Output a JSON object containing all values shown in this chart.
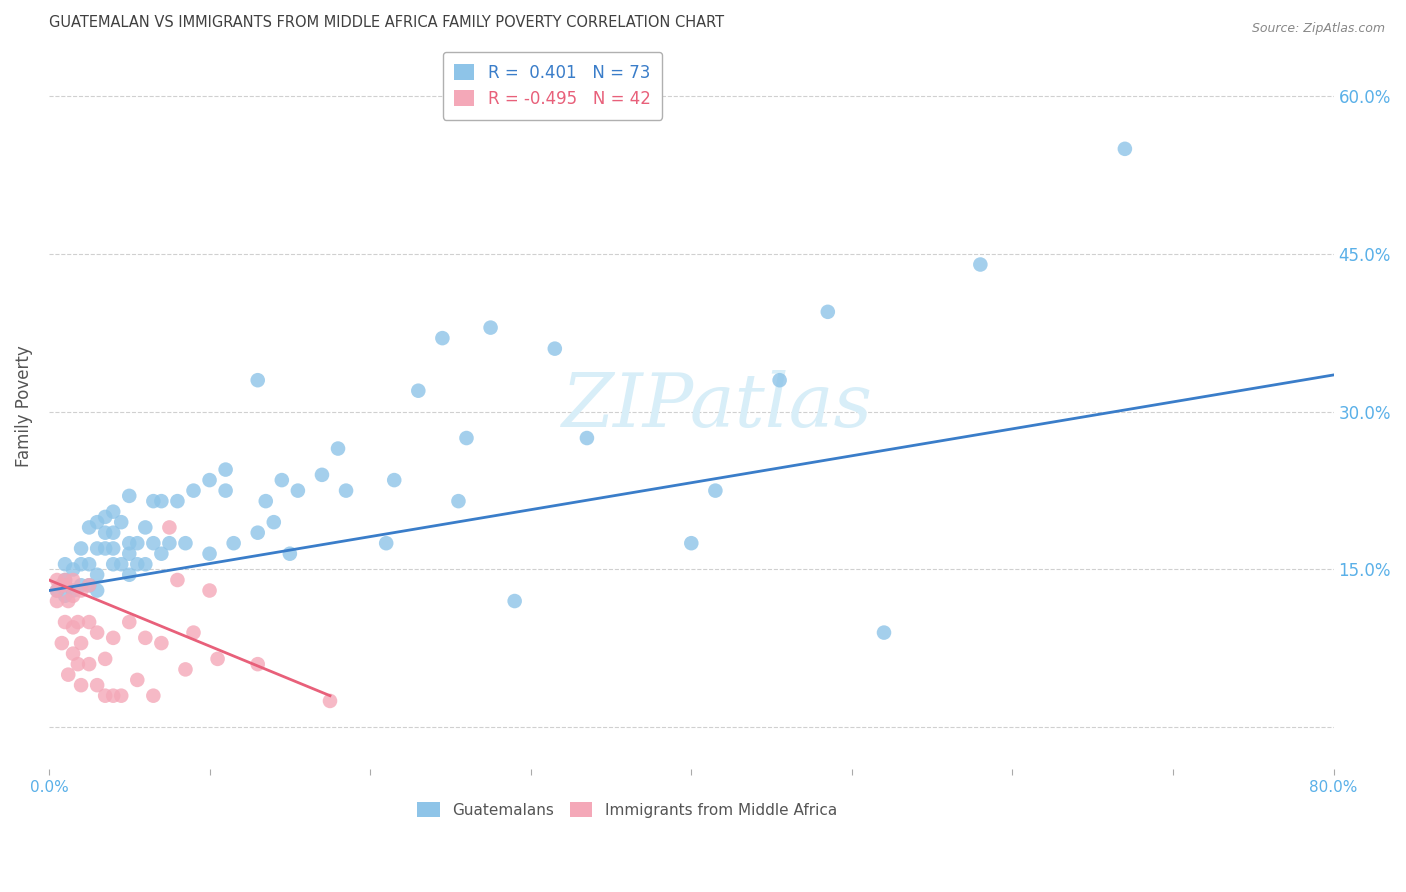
{
  "title": "GUATEMALAN VS IMMIGRANTS FROM MIDDLE AFRICA FAMILY POVERTY CORRELATION CHART",
  "source": "Source: ZipAtlas.com",
  "ylabel": "Family Poverty",
  "xlim": [
    0.0,
    0.8
  ],
  "ylim": [
    -0.04,
    0.65
  ],
  "yticks": [
    0.0,
    0.15,
    0.3,
    0.45,
    0.6
  ],
  "ytick_labels": [
    "",
    "15.0%",
    "30.0%",
    "45.0%",
    "60.0%"
  ],
  "xticks": [
    0.0,
    0.1,
    0.2,
    0.3,
    0.4,
    0.5,
    0.6,
    0.7,
    0.8
  ],
  "xtick_labels": [
    "0.0%",
    "",
    "",
    "",
    "",
    "",
    "",
    "",
    "80.0%"
  ],
  "blue_R": 0.401,
  "blue_N": 73,
  "pink_R": -0.495,
  "pink_N": 42,
  "blue_color": "#8ec4e8",
  "pink_color": "#f4a8b8",
  "blue_line_color": "#3a7dc9",
  "pink_line_color": "#e8607a",
  "grid_color": "#d0d0d0",
  "title_color": "#404040",
  "axis_label_color": "#555555",
  "right_tick_color": "#5ab0e8",
  "watermark_color": "#d8eef8",
  "blue_scatter_x": [
    0.005,
    0.01,
    0.01,
    0.01,
    0.015,
    0.015,
    0.02,
    0.02,
    0.02,
    0.025,
    0.025,
    0.025,
    0.03,
    0.03,
    0.03,
    0.03,
    0.035,
    0.035,
    0.035,
    0.04,
    0.04,
    0.04,
    0.04,
    0.045,
    0.045,
    0.05,
    0.05,
    0.05,
    0.05,
    0.055,
    0.055,
    0.06,
    0.06,
    0.065,
    0.065,
    0.07,
    0.07,
    0.075,
    0.08,
    0.085,
    0.09,
    0.1,
    0.1,
    0.11,
    0.11,
    0.115,
    0.13,
    0.13,
    0.135,
    0.14,
    0.145,
    0.15,
    0.155,
    0.17,
    0.18,
    0.185,
    0.21,
    0.215,
    0.23,
    0.245,
    0.255,
    0.26,
    0.275,
    0.29,
    0.315,
    0.335,
    0.4,
    0.415,
    0.455,
    0.485,
    0.52,
    0.58,
    0.67
  ],
  "blue_scatter_y": [
    0.13,
    0.125,
    0.14,
    0.155,
    0.13,
    0.15,
    0.135,
    0.155,
    0.17,
    0.135,
    0.155,
    0.19,
    0.13,
    0.145,
    0.17,
    0.195,
    0.17,
    0.185,
    0.2,
    0.155,
    0.17,
    0.185,
    0.205,
    0.155,
    0.195,
    0.145,
    0.165,
    0.175,
    0.22,
    0.155,
    0.175,
    0.155,
    0.19,
    0.175,
    0.215,
    0.165,
    0.215,
    0.175,
    0.215,
    0.175,
    0.225,
    0.165,
    0.235,
    0.225,
    0.245,
    0.175,
    0.185,
    0.33,
    0.215,
    0.195,
    0.235,
    0.165,
    0.225,
    0.24,
    0.265,
    0.225,
    0.175,
    0.235,
    0.32,
    0.37,
    0.215,
    0.275,
    0.38,
    0.12,
    0.36,
    0.275,
    0.175,
    0.225,
    0.33,
    0.395,
    0.09,
    0.44,
    0.55
  ],
  "pink_scatter_x": [
    0.005,
    0.005,
    0.005,
    0.008,
    0.008,
    0.01,
    0.01,
    0.01,
    0.012,
    0.012,
    0.015,
    0.015,
    0.015,
    0.015,
    0.018,
    0.018,
    0.02,
    0.02,
    0.02,
    0.025,
    0.025,
    0.025,
    0.03,
    0.03,
    0.035,
    0.035,
    0.04,
    0.04,
    0.045,
    0.05,
    0.055,
    0.06,
    0.065,
    0.07,
    0.075,
    0.08,
    0.085,
    0.09,
    0.1,
    0.105,
    0.13,
    0.175
  ],
  "pink_scatter_y": [
    0.12,
    0.13,
    0.14,
    0.08,
    0.135,
    0.1,
    0.135,
    0.14,
    0.05,
    0.12,
    0.07,
    0.095,
    0.125,
    0.14,
    0.06,
    0.1,
    0.04,
    0.08,
    0.13,
    0.06,
    0.1,
    0.135,
    0.04,
    0.09,
    0.03,
    0.065,
    0.03,
    0.085,
    0.03,
    0.1,
    0.045,
    0.085,
    0.03,
    0.08,
    0.19,
    0.14,
    0.055,
    0.09,
    0.13,
    0.065,
    0.06,
    0.025
  ],
  "blue_line_x": [
    0.0,
    0.8
  ],
  "blue_line_y": [
    0.13,
    0.335
  ],
  "pink_line_x": [
    0.0,
    0.175
  ],
  "pink_line_y": [
    0.14,
    0.03
  ],
  "background_color": "#ffffff",
  "figsize": [
    14.06,
    8.92
  ],
  "dpi": 100
}
